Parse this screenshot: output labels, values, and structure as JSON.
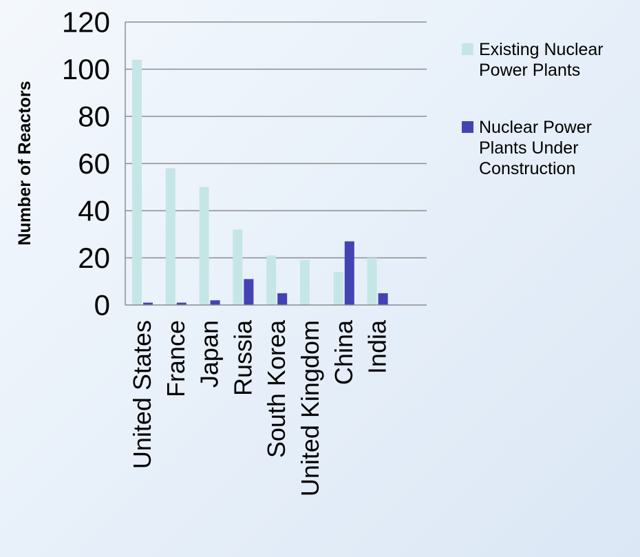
{
  "chart_data": {
    "type": "bar",
    "title": "",
    "xlabel": "",
    "ylabel": "Number of Reactors",
    "ylim": [
      0,
      120
    ],
    "yticks": [
      0,
      20,
      40,
      60,
      80,
      100,
      120
    ],
    "grid": true,
    "legend_position": "right",
    "categories": [
      "United States",
      "France",
      "Japan",
      "Russia",
      "South Korea",
      "United Kingdom",
      "China",
      "India"
    ],
    "series": [
      {
        "name": "Existing Nuclear Power Plants",
        "legend_lines": [
          "Existing Nuclear",
          "Power Plants"
        ],
        "color": "#c5e6e6",
        "values": [
          104,
          58,
          50,
          32,
          21,
          19,
          14,
          20
        ]
      },
      {
        "name": "Nuclear Power Plants Under Construction",
        "legend_lines": [
          "Nuclear Power",
          "Plants Under",
          "Construction"
        ],
        "color": "#4343b4",
        "values": [
          1,
          1,
          2,
          11,
          5,
          0,
          27,
          5
        ]
      }
    ]
  }
}
